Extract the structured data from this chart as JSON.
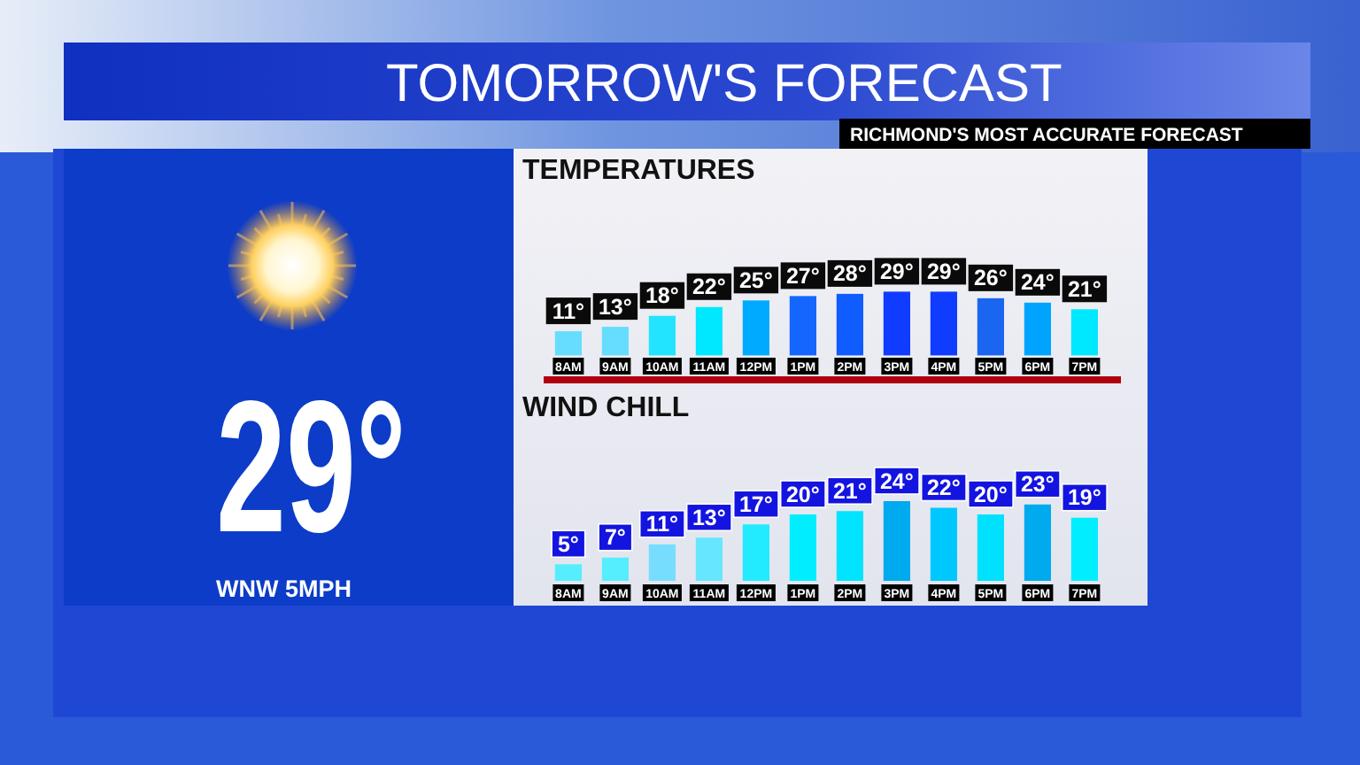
{
  "chart_data": [
    {
      "type": "other",
      "title": "TOMORROW'S FORECAST",
      "subtitle": "RICHMOND'S MOST ACCURATE FORECAST",
      "annotations": [
        "29°",
        "WNW 5MPH"
      ]
    },
    {
      "type": "bar",
      "title": "TEMPERATURES",
      "categories": [
        "8AM",
        "9AM",
        "10AM",
        "11AM",
        "12PM",
        "1PM",
        "2PM",
        "3PM",
        "4PM",
        "5PM",
        "6PM",
        "7PM"
      ],
      "values": [
        11,
        13,
        18,
        22,
        25,
        27,
        28,
        29,
        29,
        26,
        24,
        21
      ],
      "value_labels": [
        "11°",
        "13°",
        "18°",
        "22°",
        "25°",
        "27°",
        "28°",
        "29°",
        "29°",
        "26°",
        "24°",
        "21°"
      ],
      "colors": [
        "#66ddff",
        "#66ddff",
        "#22e4ff",
        "#00e8ff",
        "#00aaff",
        "#1466ff",
        "#0f5cff",
        "#0f3cff",
        "#0f3cff",
        "#1a66f0",
        "#00a4ff",
        "#00e8ff"
      ],
      "tick_labels": "x"
    },
    {
      "type": "bar",
      "title": "WIND CHILL",
      "categories": [
        "8AM",
        "9AM",
        "10AM",
        "11AM",
        "12PM",
        "1PM",
        "2PM",
        "3PM",
        "4PM",
        "5PM",
        "6PM",
        "7PM"
      ],
      "values": [
        5,
        7,
        11,
        13,
        17,
        20,
        21,
        24,
        22,
        20,
        23,
        19
      ],
      "value_labels": [
        "5°",
        "7°",
        "11°",
        "13°",
        "17°",
        "20°",
        "21°",
        "24°",
        "22°",
        "20°",
        "23°",
        "19°"
      ],
      "colors": [
        "#55eeff",
        "#55eeff",
        "#77ddff",
        "#66e6ff",
        "#22eaff",
        "#00eeff",
        "#00e4ff",
        "#00aaee",
        "#00c8ff",
        "#00e0ff",
        "#00aaee",
        "#00eeff"
      ],
      "tick_labels": "x"
    }
  ]
}
